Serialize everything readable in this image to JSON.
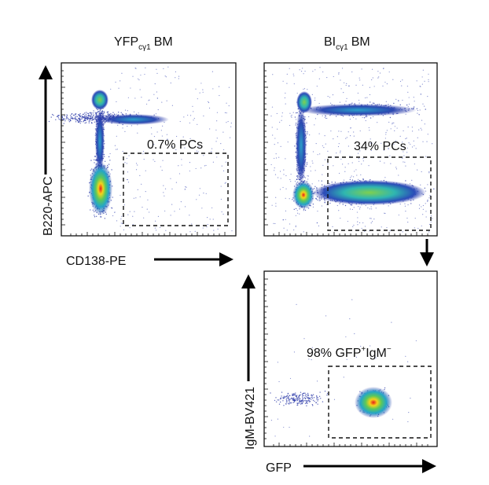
{
  "panels": [
    {
      "title": {
        "main": "YFP",
        "sub": "cγ1",
        "suffix": "BM"
      },
      "gate": "0.7% PCs",
      "ylabel": "B220-APC",
      "xlabel": "CD138-PE"
    },
    {
      "title": {
        "main": "BI",
        "sub": "cγ1",
        "suffix": "BM"
      },
      "gate": "34% PCs"
    },
    {
      "gate": {
        "a": "98% GFP",
        "sup1": "+",
        "b": "IgM",
        "sup2": "−"
      },
      "ylabel": "IgM-BV421",
      "xlabel": "GFP"
    }
  ]
}
